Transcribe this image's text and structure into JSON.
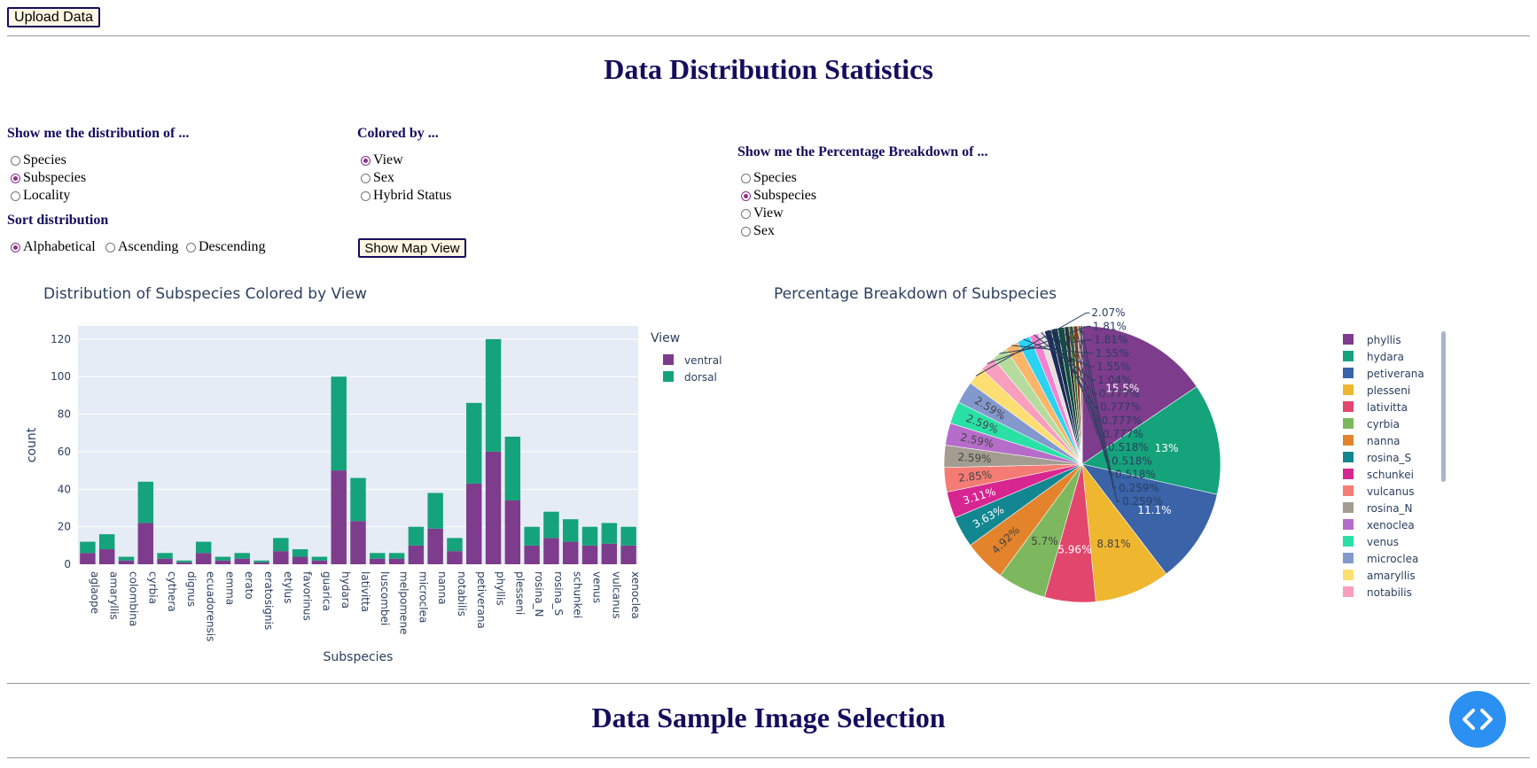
{
  "toolbar": {
    "upload_label": "Upload Data"
  },
  "stats_heading": "Data Distribution Statistics",
  "sample_heading": "Data Sample Image Selection",
  "distribution_control": {
    "label": "Show me the distribution of ...",
    "options": [
      {
        "label": "Species",
        "checked": false
      },
      {
        "label": "Subspecies",
        "checked": true
      },
      {
        "label": "Locality",
        "checked": false
      }
    ]
  },
  "colored_by_control": {
    "label": "Colored by ...",
    "options": [
      {
        "label": "View",
        "checked": true
      },
      {
        "label": "Sex",
        "checked": false
      },
      {
        "label": "Hybrid Status",
        "checked": false
      }
    ]
  },
  "sort_control": {
    "label": "Sort distribution",
    "options": [
      {
        "label": "Alphabetical",
        "checked": true
      },
      {
        "label": "Ascending",
        "checked": false
      },
      {
        "label": "Descending",
        "checked": false
      }
    ]
  },
  "map_button_label": "Show Map View",
  "breakdown_control": {
    "label": "Show me the Percentage Breakdown of ...",
    "options": [
      {
        "label": "Species",
        "checked": false
      },
      {
        "label": "Subspecies",
        "checked": true
      },
      {
        "label": "View",
        "checked": false
      },
      {
        "label": "Sex",
        "checked": false
      }
    ]
  },
  "chart_data": [
    {
      "type": "bar",
      "stacked": true,
      "title": "Distribution of Subspecies Colored by View",
      "xlabel": "Subspecies",
      "ylabel": "count",
      "ylim": [
        0,
        127
      ],
      "yticks": [
        0,
        20,
        40,
        60,
        80,
        100,
        120
      ],
      "legend_title": "View",
      "legend_position": "right",
      "categories": [
        "aglaope",
        "amaryllis",
        "colombina",
        "cyrbia",
        "cythera",
        "dignus",
        "ecuadorensis",
        "emma",
        "erato",
        "eratosignis",
        "etylus",
        "favorinus",
        "guarica",
        "hydara",
        "lativitta",
        "luscombei",
        "melpomene",
        "microclea",
        "nanna",
        "notabilis",
        "petiverana",
        "phyllis",
        "plesseni",
        "rosina_N",
        "rosina_S",
        "schunkei",
        "venus",
        "vulcanus",
        "xenoclea"
      ],
      "series": [
        {
          "name": "ventral",
          "color": "#7d3c8c",
          "values": [
            6,
            8,
            2,
            22,
            3,
            1,
            6,
            2,
            3,
            1,
            7,
            4,
            2,
            50,
            23,
            3,
            3,
            10,
            19,
            7,
            43,
            60,
            34,
            10,
            14,
            12,
            10,
            11,
            10
          ]
        },
        {
          "name": "dorsal",
          "color": "#14a37a",
          "values": [
            6,
            8,
            2,
            22,
            3,
            1,
            6,
            2,
            3,
            1,
            7,
            4,
            2,
            50,
            23,
            3,
            3,
            10,
            19,
            7,
            43,
            60,
            34,
            10,
            14,
            12,
            10,
            11,
            10
          ]
        }
      ]
    },
    {
      "type": "pie",
      "title": "Percentage Breakdown of Subspecies",
      "slices": [
        {
          "label": "phyllis",
          "value": 15.5,
          "text": "15.5%",
          "color": "#7d3c8c"
        },
        {
          "label": "hydara",
          "value": 13.0,
          "text": "13%",
          "color": "#14a37a"
        },
        {
          "label": "petiverana",
          "value": 11.1,
          "text": "11.1%",
          "color": "#3a63a8"
        },
        {
          "label": "plesseni",
          "value": 8.81,
          "text": "8.81%",
          "color": "#efb630"
        },
        {
          "label": "lativitta",
          "value": 5.96,
          "text": "5.96%",
          "color": "#e2466c"
        },
        {
          "label": "cyrbia",
          "value": 5.7,
          "text": "5.7%",
          "color": "#7db85e"
        },
        {
          "label": "nanna",
          "value": 4.92,
          "text": "4.92%",
          "color": "#e3832c"
        },
        {
          "label": "rosina_S",
          "value": 3.63,
          "text": "3.63%",
          "color": "#138791"
        },
        {
          "label": "schunkei",
          "value": 3.11,
          "text": "3.11%",
          "color": "#d72690"
        },
        {
          "label": "vulcanus",
          "value": 2.85,
          "text": "2.85%",
          "color": "#f47c74"
        },
        {
          "label": "rosina_N",
          "value": 2.59,
          "text": "2.59%",
          "color": "#a29d90"
        },
        {
          "label": "xenoclea",
          "value": 2.59,
          "text": "2.59%",
          "color": "#b56dc9"
        },
        {
          "label": "venus",
          "value": 2.59,
          "text": "2.59%",
          "color": "#29e0a5"
        },
        {
          "label": "microclea",
          "value": 2.59,
          "text": "2.59%",
          "color": "#8399ce"
        },
        {
          "label": "amaryllis",
          "value": 2.07,
          "text": "2.07%",
          "color": "#fdde72"
        },
        {
          "label": "notabilis",
          "value": 1.81,
          "text": "1.81%",
          "color": "#f79fbc"
        },
        {
          "label": "",
          "value": 1.81,
          "text": "1.81%",
          "color": "#b5dc9d"
        },
        {
          "label": "",
          "value": 1.55,
          "text": "1.55%",
          "color": "#f9b56a"
        },
        {
          "label": "",
          "value": 1.55,
          "text": "1.55%",
          "color": "#2bd3f2"
        },
        {
          "label": "",
          "value": 1.04,
          "text": "1.04%",
          "color": "#f582ce"
        },
        {
          "label": "",
          "value": 0.777,
          "text": "0.777%",
          "color": "#e6dfdb"
        },
        {
          "label": "",
          "value": 0.777,
          "text": "0.777%",
          "color": "#1e2a5c"
        },
        {
          "label": "",
          "value": 0.777,
          "text": "0.777%",
          "color": "#16324a"
        },
        {
          "label": "",
          "value": 0.777,
          "text": "0.777%",
          "color": "#0c4f3c"
        },
        {
          "label": "",
          "value": 0.518,
          "text": "0.518%",
          "color": "#2d2d2d"
        },
        {
          "label": "",
          "value": 0.518,
          "text": "0.518%",
          "color": "#3d6b2c"
        },
        {
          "label": "",
          "value": 0.518,
          "text": "0.518%",
          "color": "#8a3b22"
        },
        {
          "label": "",
          "value": 0.259,
          "text": "0.259%",
          "color": "#c59a2a"
        },
        {
          "label": "",
          "value": 0.259,
          "text": "0.259%",
          "color": "#6a2a6a"
        }
      ]
    }
  ]
}
